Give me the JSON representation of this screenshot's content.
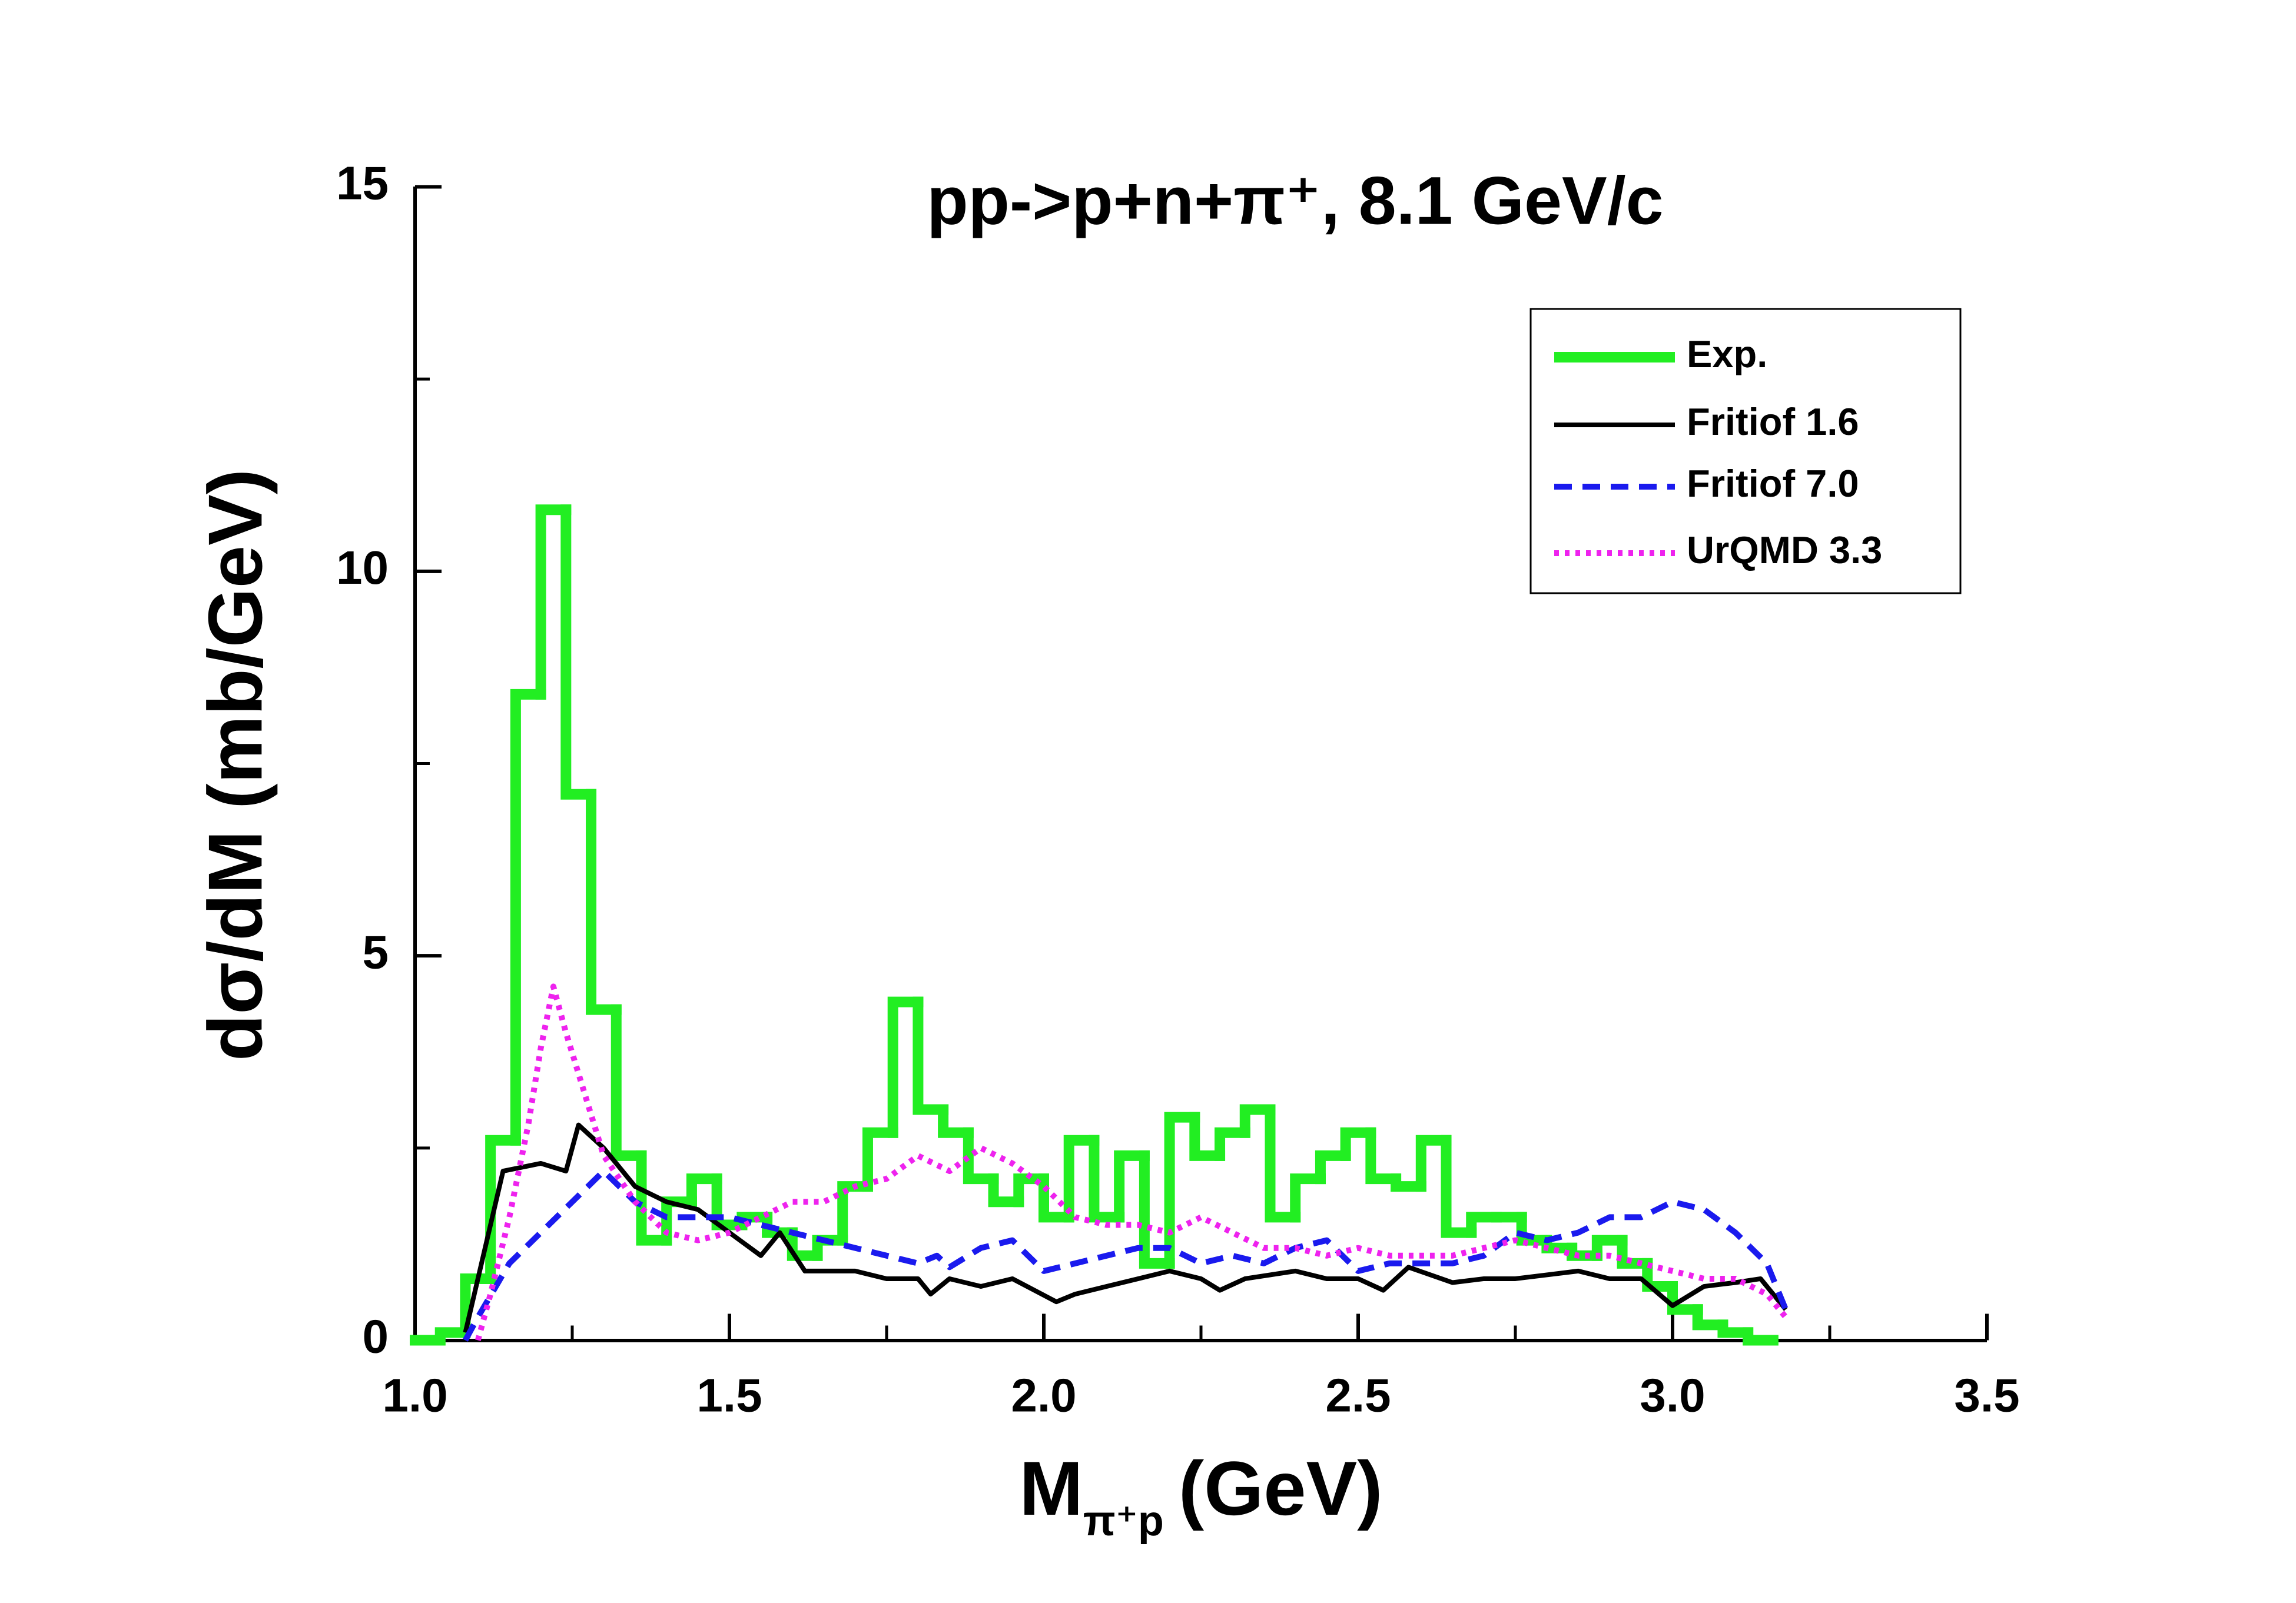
{
  "chart_data": {
    "type": "line",
    "title": "pp->p+n+π⁺, 8.1 GeV/c",
    "x_label": {
      "symbol": "M",
      "subscript": "π⁺p",
      "unit": "(GeV)"
    },
    "y_label": "dσ/dM (mb/GeV)",
    "xlim": [
      1.0,
      3.5
    ],
    "xticks": [
      {
        "value": 1.0,
        "label": "1.0"
      },
      {
        "value": 1.5,
        "label": "1.5"
      },
      {
        "value": 2.0,
        "label": "2.0"
      },
      {
        "value": 2.5,
        "label": "2.5"
      },
      {
        "value": 3.0,
        "label": "3.0"
      },
      {
        "value": 3.5,
        "label": "3.5"
      }
    ],
    "xticks_minor": [
      1.25,
      1.75,
      2.25,
      2.75,
      3.25
    ],
    "ylim": [
      0,
      15
    ],
    "yticks": [
      0,
      5,
      10,
      15
    ],
    "yticks_minor": [
      2.5,
      7.5,
      12.5
    ],
    "legend": "upper right",
    "series": [
      {
        "name": "Exp.",
        "type": "histogram",
        "color": "#22ee22",
        "style": "solid",
        "bins": [
          1.0,
          1.04,
          1.08,
          1.12,
          1.16,
          1.2,
          1.24,
          1.28,
          1.32,
          1.36,
          1.4,
          1.44,
          1.48,
          1.52,
          1.56,
          1.6,
          1.64,
          1.68,
          1.72,
          1.76,
          1.8,
          1.84,
          1.88,
          1.92,
          1.96,
          2.0,
          2.04,
          2.08,
          2.12,
          2.16,
          2.2,
          2.24,
          2.28,
          2.32,
          2.36,
          2.4,
          2.44,
          2.48,
          2.52,
          2.56,
          2.6,
          2.64,
          2.68,
          2.72,
          2.76,
          2.8,
          2.84,
          2.88,
          2.92,
          2.96,
          3.0,
          3.04,
          3.08,
          3.12,
          3.16
        ],
        "values": [
          0,
          0.1,
          0.8,
          2.6,
          8.4,
          10.8,
          7.1,
          4.3,
          2.4,
          1.3,
          1.8,
          2.1,
          1.5,
          1.6,
          1.4,
          1.1,
          1.3,
          2.0,
          2.7,
          4.4,
          3.0,
          2.7,
          2.1,
          1.8,
          2.1,
          1.6,
          2.6,
          1.6,
          2.4,
          1.0,
          2.9,
          2.4,
          2.7,
          3.0,
          1.6,
          2.1,
          2.4,
          2.7,
          2.1,
          2.0,
          2.6,
          1.4,
          1.6,
          1.6,
          1.3,
          1.2,
          1.1,
          1.3,
          1.0,
          0.7,
          0.4,
          0.2,
          0.1,
          0
        ]
      },
      {
        "name": "Fritiof 1.6",
        "type": "line",
        "color": "#000000",
        "style": "solid",
        "x": [
          1.08,
          1.14,
          1.2,
          1.24,
          1.26,
          1.3,
          1.35,
          1.4,
          1.45,
          1.5,
          1.55,
          1.58,
          1.62,
          1.7,
          1.75,
          1.8,
          1.82,
          1.85,
          1.9,
          1.95,
          2.02,
          2.05,
          2.1,
          2.15,
          2.2,
          2.25,
          2.28,
          2.32,
          2.4,
          2.45,
          2.5,
          2.54,
          2.58,
          2.65,
          2.7,
          2.75,
          2.8,
          2.85,
          2.9,
          2.95,
          3.0,
          3.05,
          3.1,
          3.14,
          3.18
        ],
        "values": [
          0.1,
          2.2,
          2.3,
          2.2,
          2.8,
          2.5,
          2.0,
          1.8,
          1.7,
          1.4,
          1.1,
          1.4,
          0.9,
          0.9,
          0.8,
          0.8,
          0.6,
          0.8,
          0.7,
          0.8,
          0.5,
          0.6,
          0.7,
          0.8,
          0.9,
          0.8,
          0.65,
          0.8,
          0.9,
          0.8,
          0.8,
          0.65,
          0.95,
          0.75,
          0.8,
          0.8,
          0.85,
          0.9,
          0.8,
          0.8,
          0.45,
          0.7,
          0.75,
          0.8,
          0.4
        ]
      },
      {
        "name": "Fritiof 7.0",
        "type": "line",
        "color": "#1a1aee",
        "style": "dashed",
        "x": [
          1.08,
          1.1,
          1.15,
          1.2,
          1.25,
          1.3,
          1.35,
          1.4,
          1.45,
          1.5,
          1.55,
          1.6,
          1.65,
          1.7,
          1.75,
          1.8,
          1.83,
          1.85,
          1.9,
          1.95,
          2.0,
          2.05,
          2.1,
          2.15,
          2.2,
          2.25,
          2.3,
          2.35,
          2.4,
          2.45,
          2.5,
          2.55,
          2.6,
          2.65,
          2.7,
          2.75,
          2.8,
          2.85,
          2.9,
          2.95,
          3.0,
          3.05,
          3.1,
          3.15,
          3.18
        ],
        "values": [
          0,
          0.3,
          1.0,
          1.4,
          1.8,
          2.2,
          1.8,
          1.6,
          1.6,
          1.6,
          1.5,
          1.4,
          1.3,
          1.2,
          1.1,
          1.0,
          1.1,
          0.95,
          1.2,
          1.3,
          0.9,
          1.0,
          1.1,
          1.2,
          1.2,
          1.0,
          1.1,
          1.0,
          1.2,
          1.3,
          0.9,
          1.0,
          1.0,
          1.0,
          1.1,
          1.4,
          1.3,
          1.4,
          1.6,
          1.6,
          1.8,
          1.7,
          1.4,
          1.0,
          0.4
        ]
      },
      {
        "name": "UrQMD 3.3",
        "type": "line",
        "color": "#ee22ee",
        "style": "dotted",
        "x": [
          1.1,
          1.12,
          1.15,
          1.18,
          1.2,
          1.22,
          1.24,
          1.27,
          1.3,
          1.35,
          1.4,
          1.45,
          1.5,
          1.55,
          1.6,
          1.65,
          1.7,
          1.75,
          1.8,
          1.85,
          1.9,
          1.95,
          2.0,
          2.05,
          2.1,
          2.15,
          2.2,
          2.25,
          2.3,
          2.35,
          2.4,
          2.45,
          2.5,
          2.55,
          2.6,
          2.65,
          2.7,
          2.75,
          2.8,
          2.85,
          2.9,
          2.95,
          3.0,
          3.05,
          3.1,
          3.15,
          3.18
        ],
        "values": [
          0,
          0.6,
          1.6,
          2.8,
          3.8,
          4.6,
          4.0,
          3.2,
          2.4,
          1.8,
          1.4,
          1.3,
          1.4,
          1.6,
          1.8,
          1.8,
          2.0,
          2.1,
          2.4,
          2.2,
          2.5,
          2.3,
          2.0,
          1.6,
          1.5,
          1.5,
          1.4,
          1.6,
          1.4,
          1.2,
          1.2,
          1.1,
          1.2,
          1.1,
          1.1,
          1.1,
          1.2,
          1.3,
          1.2,
          1.1,
          1.1,
          1.0,
          0.9,
          0.8,
          0.8,
          0.6,
          0.3
        ]
      }
    ]
  }
}
